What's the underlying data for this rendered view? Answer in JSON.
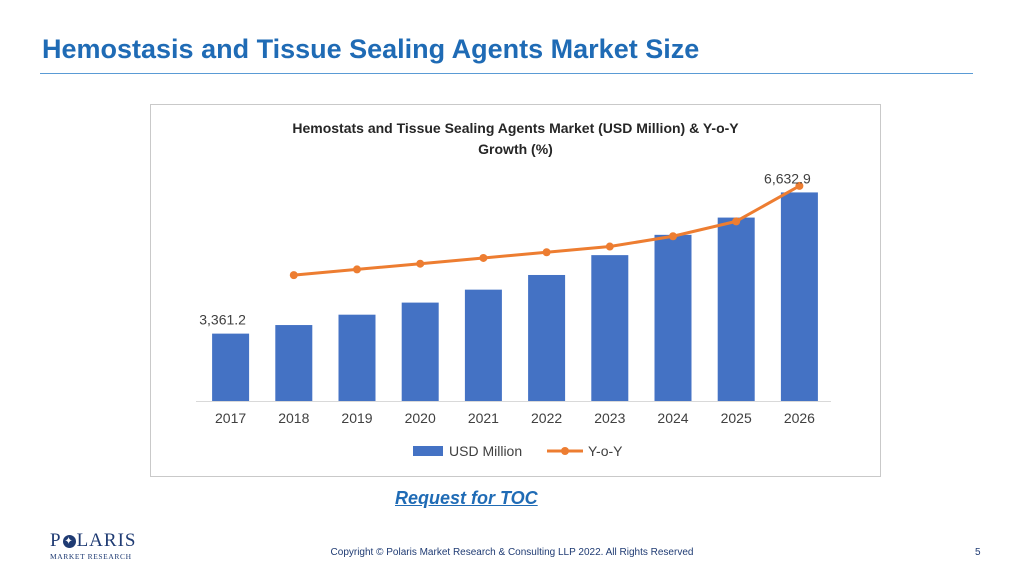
{
  "slide": {
    "title": "Hemostasis and Tissue Sealing Agents Market Size",
    "toc_link": "Request for TOC",
    "copyright": "Copyright © Polaris Market Research & Consulting LLP 2022. All Rights Reserved",
    "page_number": "5"
  },
  "logo": {
    "main_before": "P",
    "main_after": "LARIS",
    "sub": "MARKET RESEARCH"
  },
  "colors": {
    "title": "#1f6bb5",
    "bar": "#4472c4",
    "line": "#ed7d31"
  },
  "chart_data": {
    "type": "bar",
    "title_line1": "Hemostats  and Tissue  Sealing Agents Market  (USD Million) & Y-o-Y",
    "title_line2": "Growth (%)",
    "categories": [
      "2017",
      "2018",
      "2019",
      "2020",
      "2021",
      "2022",
      "2023",
      "2024",
      "2025",
      "2026"
    ],
    "series": [
      {
        "name": "USD Million",
        "type": "bar",
        "values": [
          3361.2,
          3560,
          3800,
          4080,
          4380,
          4720,
          5180,
          5650,
          6050,
          6632.9
        ]
      },
      {
        "name": "Y-o-Y",
        "type": "line",
        "values": [
          null,
          3.0,
          3.5,
          4.0,
          4.5,
          5.0,
          5.5,
          6.4,
          7.7,
          10.8
        ]
      }
    ],
    "data_labels": [
      {
        "index": 0,
        "text": "3,361.2"
      },
      {
        "index": 9,
        "text": "6,632.9"
      }
    ],
    "ylim": [
      1800,
      7500
    ],
    "line_ylim": [
      -8,
      13.5
    ],
    "legend_position": "bottom",
    "grid": false
  }
}
